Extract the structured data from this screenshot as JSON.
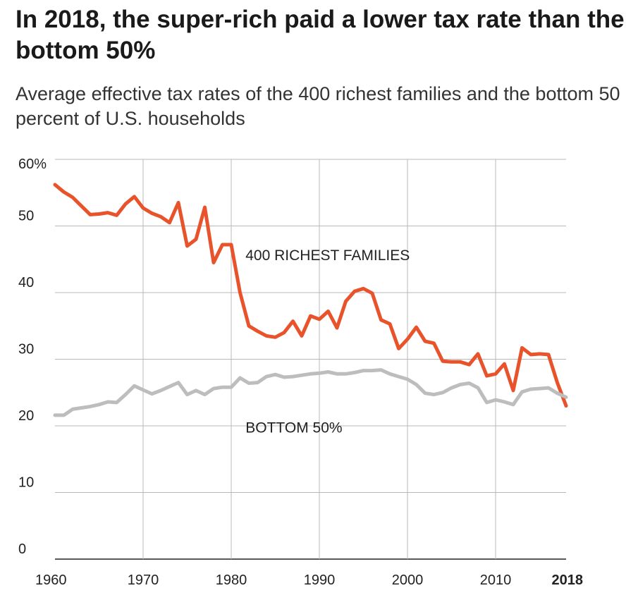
{
  "title": "In 2018, the super-rich paid a lower tax rate than the bottom 50%",
  "subtitle": "Average effective tax rates of the 400 richest families and the bottom 50 percent of U.S. households",
  "chart_data": {
    "type": "line",
    "x_domain": [
      1960,
      2018
    ],
    "ylim": [
      0,
      60
    ],
    "y_ticks": [
      {
        "value": 60,
        "label": "60%"
      },
      {
        "value": 50,
        "label": "50"
      },
      {
        "value": 40,
        "label": "40"
      },
      {
        "value": 30,
        "label": "30"
      },
      {
        "value": 20,
        "label": "20"
      },
      {
        "value": 10,
        "label": "10"
      },
      {
        "value": 0,
        "label": "0"
      }
    ],
    "x_ticks": [
      {
        "value": 1960,
        "label": "1960"
      },
      {
        "value": 1970,
        "label": "1970"
      },
      {
        "value": 1980,
        "label": "1980"
      },
      {
        "value": 1990,
        "label": "1990"
      },
      {
        "value": 2000,
        "label": "2000"
      },
      {
        "value": 2010,
        "label": "2010"
      },
      {
        "value": 2018,
        "label": "2018",
        "bold": true
      }
    ],
    "grid": true,
    "series": [
      {
        "name": "400 RICHEST FAMILIES",
        "color": "#e8532b",
        "label_anchor": {
          "x": 1980.5,
          "y": 47.2
        },
        "x": [
          1960,
          1961,
          1962,
          1963,
          1964,
          1965,
          1966,
          1967,
          1968,
          1969,
          1970,
          1971,
          1972,
          1973,
          1974,
          1975,
          1976,
          1977,
          1978,
          1979,
          1980,
          1981,
          1982,
          1983,
          1984,
          1985,
          1986,
          1987,
          1988,
          1989,
          1990,
          1991,
          1992,
          1993,
          1994,
          1995,
          1996,
          1997,
          1998,
          1999,
          2000,
          2001,
          2002,
          2003,
          2004,
          2005,
          2006,
          2007,
          2008,
          2009,
          2010,
          2011,
          2012,
          2013,
          2014,
          2015,
          2016,
          2017,
          2018
        ],
        "values": [
          56.2,
          55.1,
          54.3,
          53.0,
          51.7,
          51.8,
          52.0,
          51.6,
          53.3,
          54.4,
          52.7,
          51.9,
          51.4,
          50.5,
          53.5,
          47.0,
          48.0,
          52.8,
          44.5,
          47.2,
          47.2,
          40.0,
          35.0,
          34.2,
          33.5,
          33.3,
          34.0,
          35.7,
          33.5,
          36.5,
          36.0,
          37.2,
          34.7,
          38.7,
          40.2,
          40.6,
          39.9,
          35.9,
          35.3,
          31.6,
          33.0,
          34.8,
          32.7,
          32.4,
          29.7,
          29.6,
          29.6,
          29.2,
          30.8,
          27.5,
          27.8,
          29.3,
          25.3,
          31.7,
          30.7,
          30.8,
          30.7,
          26.5,
          23.0
        ]
      },
      {
        "name": "BOTTOM 50%",
        "color": "#bdbdbd",
        "label_anchor": {
          "x": 1980.5,
          "y": 21.3
        },
        "x": [
          1960,
          1961,
          1962,
          1963,
          1964,
          1965,
          1966,
          1967,
          1968,
          1969,
          1970,
          1971,
          1972,
          1973,
          1974,
          1975,
          1976,
          1977,
          1978,
          1979,
          1980,
          1981,
          1982,
          1983,
          1984,
          1985,
          1986,
          1987,
          1988,
          1989,
          1990,
          1991,
          1992,
          1993,
          1994,
          1995,
          1996,
          1997,
          1998,
          1999,
          2000,
          2001,
          2002,
          2003,
          2004,
          2005,
          2006,
          2007,
          2008,
          2009,
          2010,
          2011,
          2012,
          2013,
          2014,
          2015,
          2016,
          2017,
          2018
        ],
        "values": [
          21.6,
          21.6,
          22.5,
          22.7,
          22.9,
          23.2,
          23.6,
          23.5,
          24.7,
          26.0,
          25.4,
          24.8,
          25.3,
          25.9,
          26.5,
          24.7,
          25.3,
          24.7,
          25.6,
          25.8,
          25.8,
          27.2,
          26.4,
          26.5,
          27.4,
          27.7,
          27.3,
          27.4,
          27.6,
          27.8,
          27.9,
          28.1,
          27.8,
          27.8,
          28.0,
          28.3,
          28.3,
          28.4,
          27.8,
          27.4,
          27.0,
          26.2,
          24.9,
          24.7,
          25.0,
          25.7,
          26.2,
          26.4,
          25.7,
          23.5,
          23.9,
          23.6,
          23.2,
          25.1,
          25.5,
          25.6,
          25.7,
          24.9,
          24.3
        ]
      }
    ]
  }
}
